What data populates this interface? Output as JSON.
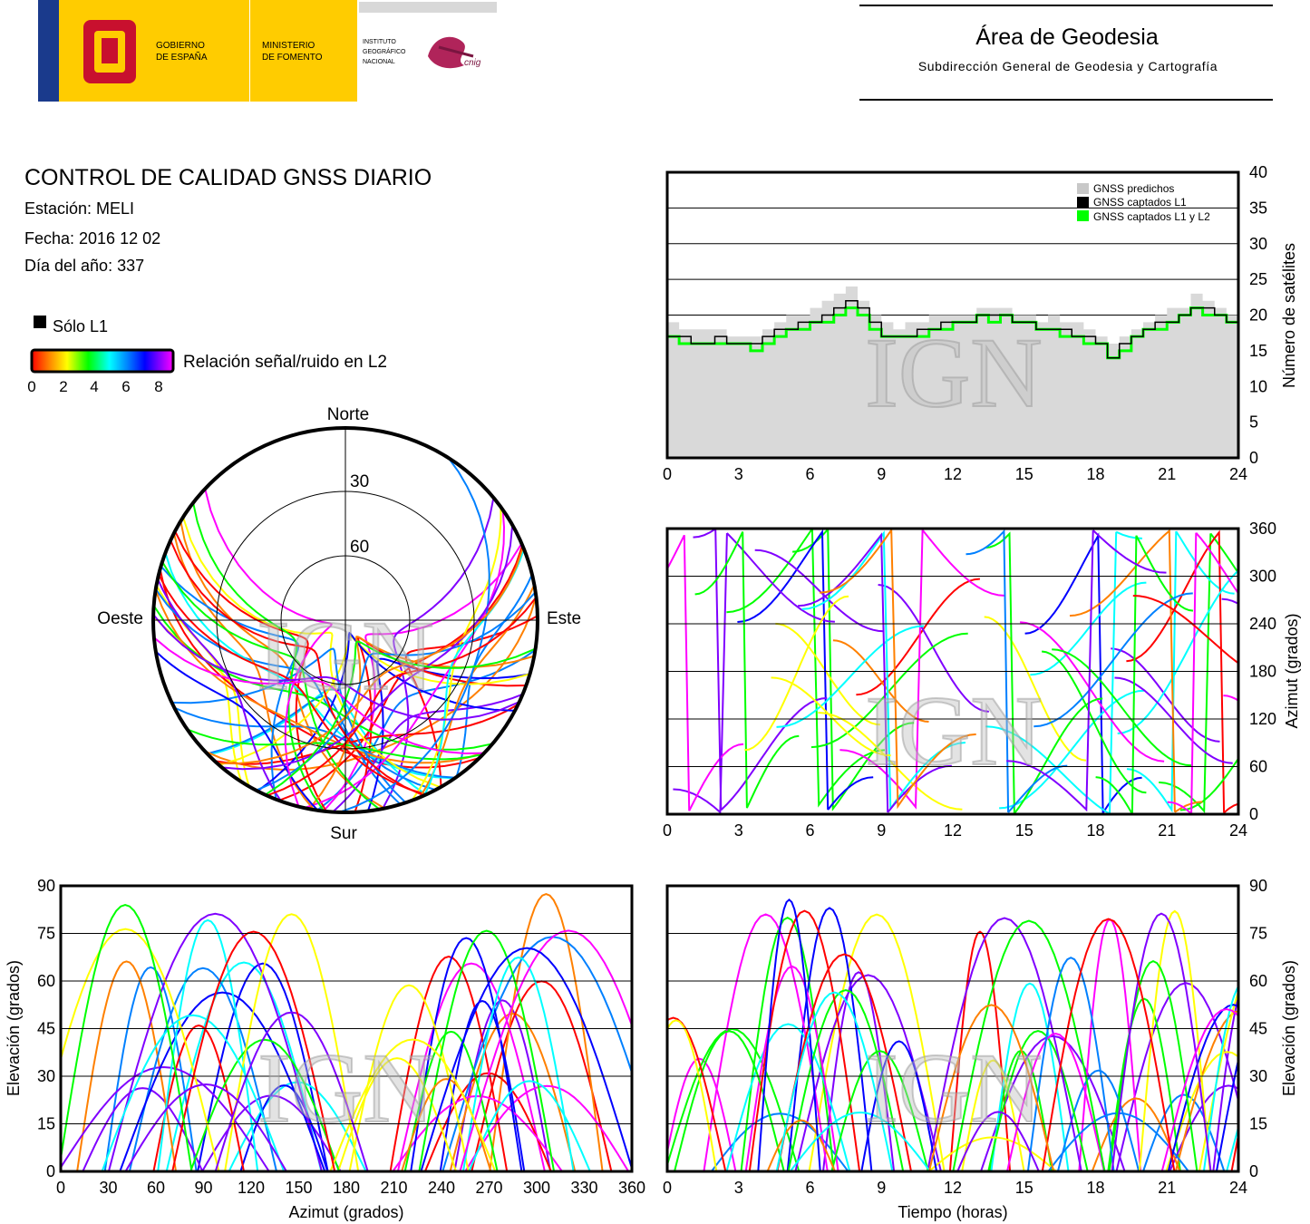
{
  "header": {
    "gov_line1": "GOBIERNO",
    "gov_line2": "DE ESPAÑA",
    "min_line1": "MINISTERIO",
    "min_line2": "DE FOMENTO",
    "ign_line1": "INSTITUTO",
    "ign_line2": "GEOGRÁFICO",
    "ign_line3": "NACIONAL",
    "cnig": "cnig",
    "area_title": "Área de Geodesia",
    "area_subtitle": "Subdirección General de Geodesia y Cartografía"
  },
  "report": {
    "title": "CONTROL DE CALIDAD GNSS DIARIO",
    "station": "Estación: MELI",
    "date": "Fecha: 2016 12 02",
    "doy": "Día del año: 337"
  },
  "legend": {
    "solo_l1": "Sólo L1",
    "snr_label": "Relación señal/ruido en L2",
    "snr_ticks": [
      "0",
      "2",
      "4",
      "6",
      "8"
    ],
    "colorbar": [
      "#ff0000",
      "#ff8000",
      "#ffff00",
      "#00ff00",
      "#00ffff",
      "#0080ff",
      "#0000ff",
      "#8000ff",
      "#ff00ff"
    ]
  },
  "watermark": "IGN",
  "chart_data": [
    {
      "id": "skyplot",
      "type": "scatter",
      "title": "",
      "directions": {
        "north": "Norte",
        "south": "Sur",
        "west": "Oeste",
        "east": "Este"
      },
      "ring_labels": [
        "30",
        "60"
      ],
      "note": "polar sky plot of satellite tracks (azimuth / elevation), colored by L2 SNR"
    },
    {
      "id": "satellites",
      "type": "area",
      "xlabel": "",
      "ylabel": "Número de satélites",
      "xlim": [
        0,
        24
      ],
      "ylim": [
        0,
        40
      ],
      "xticks": [
        "0",
        "3",
        "6",
        "9",
        "12",
        "15",
        "18",
        "21",
        "24"
      ],
      "yticks": [
        "0",
        "5",
        "10",
        "15",
        "20",
        "25",
        "30",
        "35",
        "40"
      ],
      "legend": [
        "GNSS predichos",
        "GNSS captados L1",
        "GNSS captados L1 y L2"
      ],
      "legend_colors": [
        "#c8c8c8",
        "#000000",
        "#00ff00"
      ],
      "x": [
        0,
        0.5,
        1,
        1.5,
        2,
        2.5,
        3,
        3.5,
        4,
        4.5,
        5,
        5.5,
        6,
        6.5,
        7,
        7.5,
        8,
        8.5,
        9,
        9.5,
        10,
        10.5,
        11,
        11.5,
        12,
        12.5,
        13,
        13.5,
        14,
        14.5,
        15,
        15.5,
        16,
        16.5,
        17,
        17.5,
        18,
        18.5,
        19,
        19.5,
        20,
        20.5,
        21,
        21.5,
        22,
        22.5,
        23,
        23.5,
        24
      ],
      "predicted": [
        19,
        18,
        18,
        18,
        18,
        17,
        17,
        17,
        18,
        19,
        20,
        20,
        21,
        22,
        23,
        24,
        22,
        20,
        19,
        18,
        19,
        19,
        20,
        20,
        20,
        20,
        21,
        21,
        21,
        20,
        20,
        19,
        20,
        19,
        19,
        18,
        17,
        16,
        17,
        18,
        19,
        20,
        21,
        21,
        23,
        22,
        21,
        20,
        19
      ],
      "captured_l1": [
        17,
        17,
        16,
        16,
        17,
        16,
        16,
        16,
        17,
        18,
        18,
        19,
        19,
        20,
        21,
        22,
        21,
        19,
        17,
        17,
        17,
        18,
        18,
        19,
        19,
        19,
        20,
        20,
        20,
        19,
        19,
        18,
        18,
        18,
        17,
        17,
        16,
        14,
        16,
        17,
        18,
        19,
        19,
        20,
        21,
        21,
        20,
        19,
        19
      ],
      "captured_l1_l2": [
        17,
        16,
        16,
        16,
        16,
        16,
        16,
        15,
        16,
        17,
        18,
        18,
        19,
        19,
        20,
        21,
        20,
        18,
        17,
        17,
        17,
        17,
        18,
        18,
        19,
        19,
        20,
        19,
        20,
        19,
        19,
        18,
        18,
        17,
        17,
        16,
        16,
        14,
        15,
        17,
        18,
        18,
        19,
        20,
        21,
        20,
        20,
        19,
        18
      ]
    },
    {
      "id": "azimuth_time",
      "type": "scatter",
      "xlabel": "",
      "ylabel": "Azimut (grados)",
      "xlim": [
        0,
        24
      ],
      "ylim": [
        0,
        360
      ],
      "xticks": [
        "0",
        "3",
        "6",
        "9",
        "12",
        "15",
        "18",
        "21",
        "24"
      ],
      "yticks": [
        "0",
        "60",
        "120",
        "180",
        "240",
        "300",
        "360"
      ]
    },
    {
      "id": "elevation_azimuth",
      "type": "scatter",
      "xlabel": "Azimut (grados)",
      "ylabel": "Elevación (grados)",
      "xlim": [
        0,
        360
      ],
      "ylim": [
        0,
        90
      ],
      "xticks": [
        "0",
        "30",
        "60",
        "90",
        "120",
        "150",
        "180",
        "210",
        "240",
        "270",
        "300",
        "330",
        "360"
      ],
      "yticks": [
        "0",
        "15",
        "30",
        "45",
        "60",
        "75",
        "90"
      ]
    },
    {
      "id": "elevation_time",
      "type": "scatter",
      "xlabel": "Tiempo (horas)",
      "ylabel": "Elevación (grados)",
      "xlim": [
        0,
        24
      ],
      "ylim": [
        0,
        90
      ],
      "xticks": [
        "0",
        "3",
        "6",
        "9",
        "12",
        "15",
        "18",
        "21",
        "24"
      ],
      "yticks": [
        "0",
        "15",
        "30",
        "45",
        "60",
        "75",
        "90"
      ]
    }
  ]
}
